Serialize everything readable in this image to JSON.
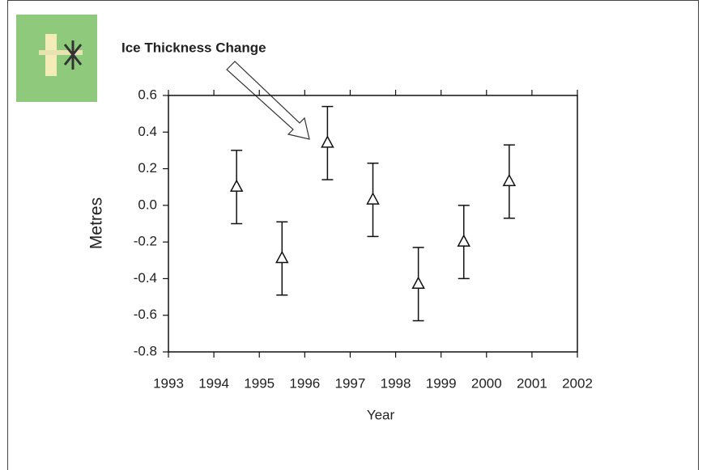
{
  "chart_data": {
    "type": "errorbar",
    "title": "Ice Thickness Change",
    "x_label": "Year",
    "y_label": "Metres",
    "x": [
      1994.5,
      1995.5,
      1996.5,
      1997.5,
      1998.5,
      1999.5,
      2000.5
    ],
    "values": [
      0.1,
      -0.29,
      0.34,
      0.03,
      -0.43,
      -0.2,
      0.13
    ],
    "errors": [
      0.2,
      0.2,
      0.2,
      0.2,
      0.2,
      0.2,
      0.2
    ],
    "color": "#111111",
    "marker": "triangle",
    "xlim": [
      1993,
      2002
    ],
    "xticks": [
      1993,
      1994,
      1995,
      1996,
      1997,
      1998,
      1999,
      2000,
      2001,
      2002
    ],
    "ylim": [
      -0.8,
      0.6
    ],
    "yticks": [
      0.6,
      0.4,
      0.2,
      {
        "value": 0,
        "label": "0.0"
      },
      -0.2,
      -0.4,
      -0.6,
      -0.8
    ]
  }
}
